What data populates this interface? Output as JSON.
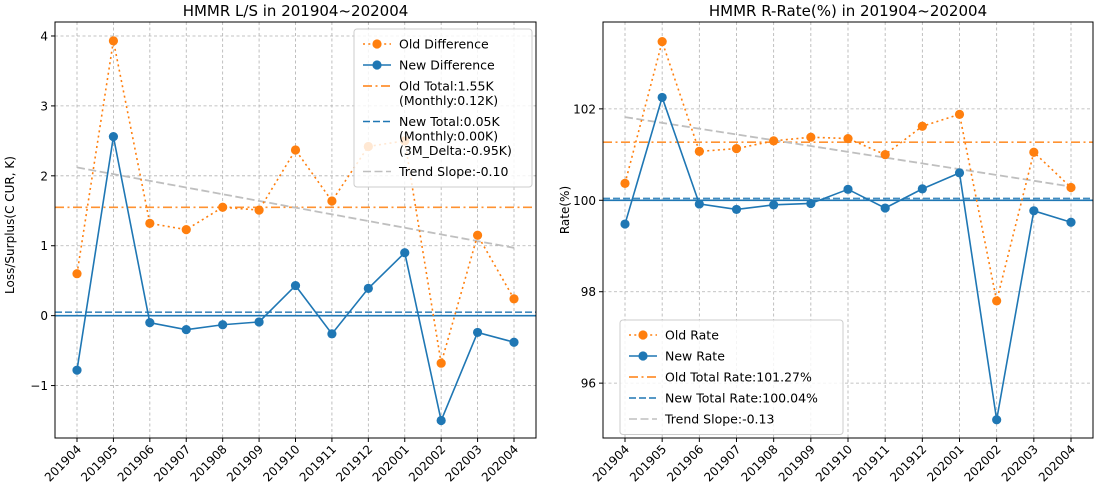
{
  "chart_data": [
    {
      "type": "line",
      "title": "HMMR L/S in 201904~202004",
      "xlabel": "",
      "ylabel": "Loss/Surplus(C CUR, K)",
      "categories": [
        "201904",
        "201905",
        "201906",
        "201907",
        "201908",
        "201909",
        "201910",
        "201911",
        "201912",
        "202001",
        "202002",
        "202003",
        "202004"
      ],
      "ylim": [
        -1.75,
        4.2
      ],
      "yticks": [
        -1,
        0,
        1,
        2,
        3,
        4
      ],
      "ytick_labels": [
        "−1",
        "0",
        "1",
        "2",
        "3",
        "4"
      ],
      "grid": true,
      "legend_placement": "top-right",
      "series": [
        {
          "name": "Old Difference",
          "color": "#ff7f0e",
          "style": "dotted-markers",
          "values": [
            0.6,
            3.93,
            1.32,
            1.23,
            1.55,
            1.51,
            2.37,
            1.64,
            2.42,
            2.5,
            -0.68,
            1.15,
            0.24
          ]
        },
        {
          "name": "New Difference",
          "color": "#1f77b4",
          "style": "solid-markers",
          "values": [
            -0.78,
            2.56,
            -0.1,
            -0.2,
            -0.13,
            -0.09,
            0.43,
            -0.26,
            0.39,
            0.9,
            -1.5,
            -0.24,
            -0.38
          ]
        }
      ],
      "hlines": [
        {
          "name": "Old Total:1.55K\n(Monthly:0.12K)",
          "value": 1.55,
          "color": "#ff7f0e",
          "style": "dashdot"
        },
        {
          "name": "New Total:0.05K\n(Monthly:0.00K)\n(3M_Delta:-0.95K)",
          "value": 0.05,
          "color": "#1f77b4",
          "style": "dashed"
        }
      ],
      "zero_line": {
        "value": 0,
        "color": "#1f77b4"
      },
      "trend": {
        "name": "Trend Slope:-0.10",
        "start": 2.12,
        "end": 0.97,
        "color": "#bfbfbf"
      }
    },
    {
      "type": "line",
      "title": "HMMR R-Rate(%) in 201904~202004",
      "xlabel": "",
      "ylabel": "Rate(%)",
      "categories": [
        "201904",
        "201905",
        "201906",
        "201907",
        "201908",
        "201909",
        "201910",
        "201911",
        "201912",
        "202001",
        "202002",
        "202003",
        "202004"
      ],
      "ylim": [
        94.8,
        103.9
      ],
      "yticks": [
        96,
        98,
        100,
        102
      ],
      "ytick_labels": [
        "96",
        "98",
        "100",
        "102"
      ],
      "grid": true,
      "legend_placement": "bottom-left",
      "series": [
        {
          "name": "Old Rate",
          "color": "#ff7f0e",
          "style": "dotted-markers",
          "values": [
            100.37,
            103.47,
            101.07,
            101.13,
            101.3,
            101.38,
            101.35,
            101.0,
            101.62,
            101.88,
            97.8,
            101.05,
            100.28
          ]
        },
        {
          "name": "New Rate",
          "color": "#1f77b4",
          "style": "solid-markers",
          "values": [
            99.48,
            102.25,
            99.92,
            99.8,
            99.9,
            99.93,
            100.24,
            99.83,
            100.25,
            100.6,
            95.2,
            99.77,
            99.52
          ]
        }
      ],
      "hlines": [
        {
          "name": "Old Total Rate:101.27%",
          "value": 101.27,
          "color": "#ff7f0e",
          "style": "dashdot"
        },
        {
          "name": "New Total Rate:100.04%",
          "value": 100.04,
          "color": "#1f77b4",
          "style": "dashed"
        }
      ],
      "zero_line": {
        "value": 100,
        "color": "#1f77b4"
      },
      "trend": {
        "name": "Trend Slope:-0.13",
        "start": 101.82,
        "end": 100.3,
        "color": "#bfbfbf"
      }
    }
  ]
}
